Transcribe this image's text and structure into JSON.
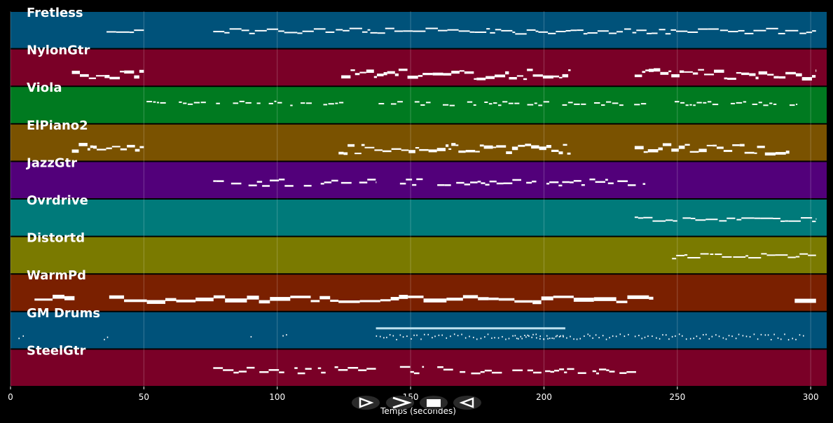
{
  "chart_data": {
    "type": "piano-roll",
    "xlabel": "Temps (secondes)",
    "xlim": [
      0,
      306
    ],
    "xticks": [
      0,
      50,
      100,
      150,
      200,
      250,
      300
    ],
    "grid": true,
    "background": "#000000",
    "tracks": [
      {
        "name": "Fretless",
        "color": "#00527a",
        "segments": [
          [
            36,
            50
          ],
          [
            76,
            302
          ]
        ],
        "style": "line"
      },
      {
        "name": "NylonGtr",
        "color": "#7a0027",
        "segments": [
          [
            23,
            50
          ],
          [
            124,
            210
          ],
          [
            234,
            302
          ]
        ],
        "style": "dense"
      },
      {
        "name": "Viola",
        "color": "#007a20",
        "segments": [
          [
            51,
            126
          ],
          [
            138,
            241
          ],
          [
            249,
            295
          ]
        ],
        "style": "dashed"
      },
      {
        "name": "ElPiano2",
        "color": "#7a5200",
        "segments": [
          [
            23,
            50
          ],
          [
            123,
            210
          ],
          [
            234,
            292
          ]
        ],
        "style": "dense"
      },
      {
        "name": "JazzGtr",
        "color": "#52007a",
        "segments": [
          [
            76,
            137
          ],
          [
            146,
            155
          ],
          [
            160,
            238
          ]
        ],
        "style": "sparse"
      },
      {
        "name": "Ovrdrive",
        "color": "#007a7a",
        "segments": [
          [
            234,
            250
          ],
          [
            252,
            302
          ]
        ],
        "style": "line"
      },
      {
        "name": "Distortd",
        "color": "#7a7a00",
        "segments": [
          [
            248,
            302
          ]
        ],
        "style": "line"
      },
      {
        "name": "WarmPd",
        "color": "#7a2000",
        "segments": [
          [
            9,
            24
          ],
          [
            37,
            241
          ],
          [
            294,
            302
          ]
        ],
        "style": "block"
      },
      {
        "name": "GM Drums",
        "color": "#00527a",
        "segments": [
          [
            3,
            6
          ],
          [
            35,
            37
          ],
          [
            90,
            91
          ],
          [
            102,
            104
          ],
          [
            137,
            208
          ],
          [
            189,
            217
          ],
          [
            217,
            232
          ],
          [
            234,
            298
          ]
        ],
        "style": "drums"
      },
      {
        "name": "SteelGtr",
        "color": "#7a0027",
        "segments": [
          [
            76,
            137
          ],
          [
            146,
            155
          ],
          [
            160,
            238
          ]
        ],
        "style": "sparse"
      }
    ]
  },
  "controls": {
    "rewind_icon": "rewind-icon",
    "forward_icon": "forward-icon",
    "stop_icon": "stop-icon",
    "back_icon": "back-icon"
  }
}
